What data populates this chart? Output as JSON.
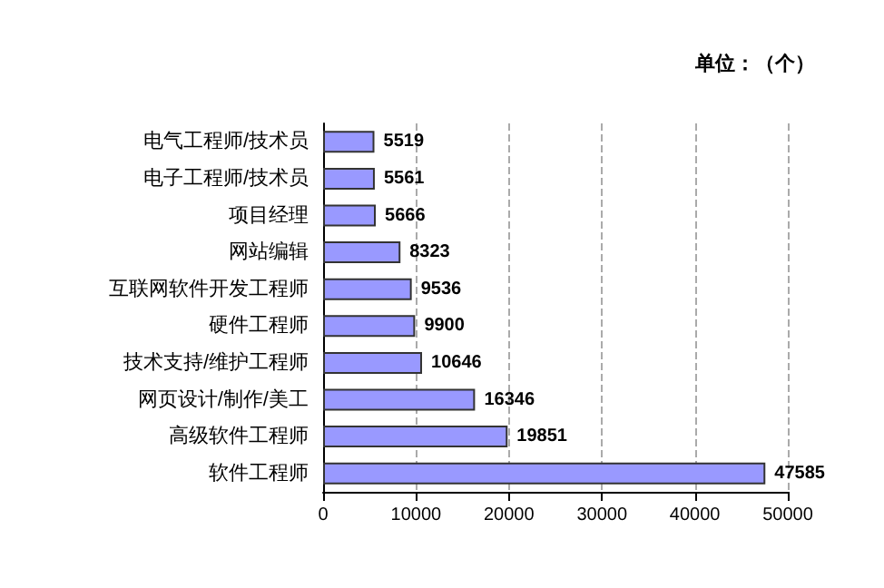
{
  "chart_data": {
    "type": "bar",
    "orientation": "horizontal",
    "annotations": [
      "单位：（个）"
    ],
    "categories": [
      "电气工程师/技术员",
      "电子工程师/技术员",
      "项目经理",
      "网站编辑",
      "互联网软件开发工程师",
      "硬件工程师",
      "技术支持/维护工程师",
      "网页设计/制作/美工",
      "高级软件工程师",
      "软件工程师"
    ],
    "values": [
      5519,
      5561,
      5666,
      8323,
      9536,
      9900,
      10646,
      16346,
      19851,
      47585
    ],
    "color": "#9999ff",
    "xlim": [
      0,
      50000
    ],
    "xticks": [
      0,
      10000,
      20000,
      30000,
      40000,
      50000
    ],
    "grid": "x",
    "data_labels": true
  }
}
